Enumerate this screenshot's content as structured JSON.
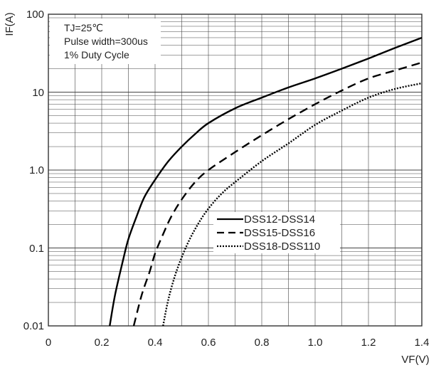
{
  "chart_data": {
    "type": "line",
    "title": "",
    "xlabel": "VF(V)",
    "ylabel": "IF(A)",
    "yscale": "log",
    "xlim": [
      0,
      1.4
    ],
    "ylim": [
      0.01,
      100
    ],
    "x_ticks": [
      "0",
      "0.2",
      "0.4",
      "0.6",
      "0.8",
      "1.0",
      "1.2",
      "1.4"
    ],
    "y_ticks": [
      "0.01",
      "0.1",
      "1.0",
      "10",
      "100"
    ],
    "grid": true,
    "legend_position": "center-right",
    "conditions": [
      "TJ=25℃",
      "Pulse width=300us",
      "1% Duty Cycle"
    ],
    "series": [
      {
        "name": "DSS12-DSS14",
        "line_style": "solid",
        "points": [
          [
            0.23,
            0.01
          ],
          [
            0.25,
            0.025
          ],
          [
            0.28,
            0.07
          ],
          [
            0.3,
            0.13
          ],
          [
            0.33,
            0.25
          ],
          [
            0.36,
            0.45
          ],
          [
            0.4,
            0.75
          ],
          [
            0.45,
            1.3
          ],
          [
            0.5,
            2.0
          ],
          [
            0.55,
            2.9
          ],
          [
            0.6,
            4.0
          ],
          [
            0.7,
            6.2
          ],
          [
            0.8,
            8.5
          ],
          [
            0.9,
            11.5
          ],
          [
            1.0,
            15
          ],
          [
            1.1,
            20
          ],
          [
            1.2,
            27
          ],
          [
            1.3,
            37
          ],
          [
            1.4,
            50
          ]
        ]
      },
      {
        "name": "DSS15-DSS16",
        "line_style": "dashed",
        "points": [
          [
            0.32,
            0.01
          ],
          [
            0.35,
            0.025
          ],
          [
            0.38,
            0.05
          ],
          [
            0.4,
            0.085
          ],
          [
            0.43,
            0.15
          ],
          [
            0.46,
            0.25
          ],
          [
            0.5,
            0.42
          ],
          [
            0.55,
            0.7
          ],
          [
            0.6,
            1.0
          ],
          [
            0.7,
            1.7
          ],
          [
            0.8,
            2.8
          ],
          [
            0.9,
            4.5
          ],
          [
            1.0,
            7
          ],
          [
            1.1,
            10.5
          ],
          [
            1.2,
            15
          ],
          [
            1.3,
            19
          ],
          [
            1.4,
            24
          ]
        ]
      },
      {
        "name": "DSS18-DSS110",
        "line_style": "dotted",
        "points": [
          [
            0.43,
            0.01
          ],
          [
            0.45,
            0.022
          ],
          [
            0.48,
            0.05
          ],
          [
            0.52,
            0.11
          ],
          [
            0.56,
            0.2
          ],
          [
            0.6,
            0.32
          ],
          [
            0.65,
            0.5
          ],
          [
            0.7,
            0.7
          ],
          [
            0.8,
            1.3
          ],
          [
            0.9,
            2.2
          ],
          [
            1.0,
            3.8
          ],
          [
            1.1,
            5.8
          ],
          [
            1.2,
            8.5
          ],
          [
            1.3,
            11
          ],
          [
            1.4,
            13
          ]
        ]
      }
    ]
  }
}
